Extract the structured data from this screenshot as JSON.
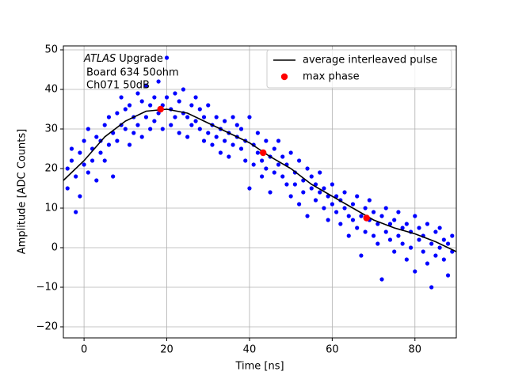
{
  "chart_data": {
    "type": "scatter",
    "xlabel": "Time [ns]",
    "ylabel": "Amplitude [ADC Counts]",
    "atlas": "ATLAS",
    "annotations": [
      "Upgrade",
      "Board 634 50ohm",
      "Ch071 50dB"
    ],
    "xlim": [
      -5,
      90
    ],
    "ylim": [
      -22.8,
      51
    ],
    "xticks": [
      0,
      20,
      40,
      60,
      80
    ],
    "yticks": [
      {
        "value": -20,
        "label": "−20"
      },
      {
        "value": -10,
        "label": "−10"
      },
      0,
      10,
      20,
      30,
      40,
      50
    ],
    "grid": true,
    "legend": "upper right",
    "points": {
      "color": "#0000ff",
      "x": [
        -4,
        -4,
        -3,
        -3,
        -2,
        -2,
        -1,
        -1,
        0,
        0,
        1,
        1,
        2,
        2,
        3,
        3,
        4,
        4,
        5,
        5,
        6,
        6,
        7,
        7,
        8,
        8,
        9,
        9,
        10,
        10,
        11,
        11,
        12,
        12,
        13,
        13,
        14,
        14,
        15,
        15,
        16,
        16,
        17,
        17,
        18,
        18,
        19,
        19,
        20,
        20,
        21,
        21,
        22,
        22,
        23,
        23,
        24,
        24,
        25,
        25,
        26,
        26,
        27,
        27,
        28,
        28,
        29,
        29,
        30,
        30,
        31,
        31,
        32,
        32,
        33,
        33,
        34,
        34,
        35,
        35,
        36,
        36,
        37,
        37,
        38,
        38,
        39,
        39,
        40,
        40,
        41,
        41,
        42,
        42,
        43,
        43,
        44,
        44,
        45,
        45,
        46,
        46,
        47,
        47,
        48,
        48,
        49,
        49,
        50,
        50,
        51,
        51,
        52,
        52,
        53,
        53,
        54,
        54,
        55,
        55,
        56,
        56,
        57,
        57,
        58,
        58,
        59,
        59,
        60,
        60,
        61,
        61,
        62,
        62,
        63,
        63,
        64,
        64,
        65,
        65,
        66,
        66,
        67,
        67,
        68,
        68,
        69,
        69,
        70,
        70,
        71,
        71,
        72,
        72,
        73,
        73,
        74,
        74,
        75,
        75,
        76,
        76,
        77,
        77,
        78,
        78,
        79,
        79,
        80,
        80,
        81,
        81,
        82,
        82,
        83,
        83,
        84,
        84,
        85,
        85,
        86,
        86,
        87,
        87,
        88,
        88,
        89,
        89
      ],
      "values": [
        20,
        15,
        22,
        25,
        18,
        9,
        24,
        13,
        21,
        27,
        30,
        19,
        25,
        22,
        28,
        17,
        27,
        24,
        31,
        22,
        26,
        33,
        29,
        18,
        34,
        27,
        31,
        38,
        30,
        35,
        36,
        26,
        33,
        29,
        39,
        31,
        37,
        28,
        33,
        41,
        36,
        30,
        38,
        32,
        42,
        34,
        36,
        30,
        48,
        38,
        35,
        31,
        39,
        33,
        37,
        29,
        34,
        40,
        33,
        28,
        36,
        31,
        32,
        38,
        30,
        35,
        27,
        33,
        36,
        29,
        31,
        26,
        33,
        28,
        30,
        24,
        27,
        32,
        29,
        23,
        33,
        26,
        28,
        31,
        25,
        30,
        22,
        27,
        33,
        15,
        26,
        21,
        29,
        24,
        22,
        18,
        27,
        20,
        23,
        14,
        25,
        19,
        21,
        27,
        18,
        23,
        16,
        21,
        24,
        13,
        19,
        16,
        22,
        11,
        17,
        14,
        20,
        8,
        15,
        18,
        12,
        16,
        14,
        19,
        10,
        15,
        13,
        7,
        16,
        11,
        9,
        13,
        12,
        6,
        14,
        10,
        8,
        3,
        11,
        7,
        5,
        13,
        8,
        -2,
        10,
        4,
        7,
        12,
        3,
        9,
        6,
        1,
        8,
        -8,
        4,
        10,
        2,
        6,
        7,
        -1,
        3,
        9,
        1,
        5,
        -3,
        6,
        4,
        0,
        8,
        -6,
        2,
        5,
        -1,
        3,
        6,
        -4,
        1,
        -10,
        4,
        -2,
        0,
        5,
        -3,
        2,
        1,
        -7,
        3,
        -1
      ]
    },
    "series": [
      {
        "name": "average interleaved pulse",
        "type": "line",
        "color": "#000000",
        "x": [
          -5,
          0,
          5,
          10,
          15,
          20,
          25,
          30,
          35,
          40,
          45,
          50,
          55,
          60,
          65,
          70,
          75,
          80,
          85,
          90
        ],
        "values": [
          17,
          22,
          28,
          32,
          34.5,
          35,
          34,
          31.5,
          29,
          26.5,
          23,
          20,
          16,
          13,
          10,
          7,
          5,
          3.5,
          1.5,
          -1
        ]
      },
      {
        "name": "max phase",
        "type": "scatter",
        "color": "#ff0000",
        "x": [
          18.5,
          43.3,
          68.3
        ],
        "values": [
          35,
          24,
          7.5
        ]
      }
    ]
  }
}
